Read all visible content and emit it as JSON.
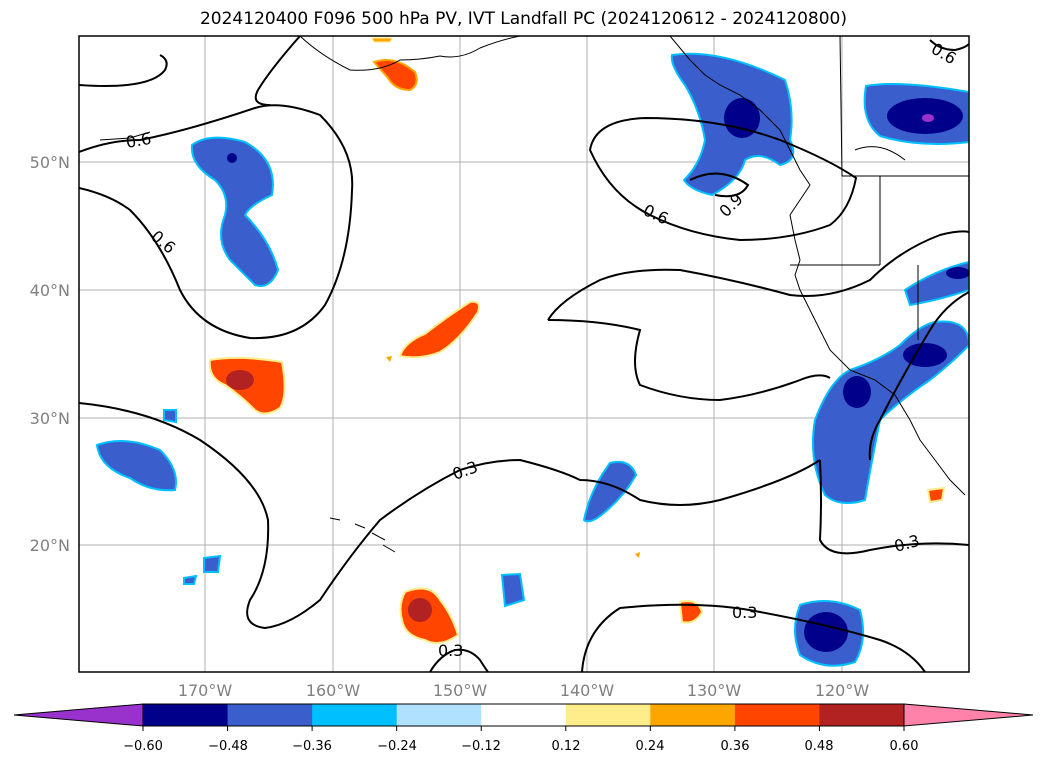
{
  "title": "2024120400 F096 500 hPa PV, IVT Landfall PC (2024120612 - 2024120800)",
  "latitude_labels": [
    "50°N",
    "40°N",
    "30°N",
    "20°N"
  ],
  "longitude_labels": [
    "170°W",
    "160°W",
    "150°W",
    "140°W",
    "130°W",
    "120°W"
  ],
  "contour_labels": [
    "0.6",
    "0.6",
    "0.6",
    "0.9",
    "0.3",
    "0.3",
    "0.3",
    "0.3",
    "0.6"
  ],
  "colorbar": {
    "tick_labels": [
      "−0.60",
      "−0.48",
      "−0.36",
      "−0.24",
      "−0.12",
      "0.12",
      "0.24",
      "0.36",
      "0.48",
      "0.60"
    ],
    "colors": [
      "#9932cc",
      "#00008b",
      "#3a5fcd",
      "#00bfff",
      "#b0e2ff",
      "#ffffff",
      "#ffec8b",
      "#ffa500",
      "#ff4500",
      "#b22222",
      "#ff82ab"
    ]
  },
  "colors": {
    "gridline": "#b0b0b0",
    "axis_label": "#808080",
    "contour": "#000000"
  }
}
